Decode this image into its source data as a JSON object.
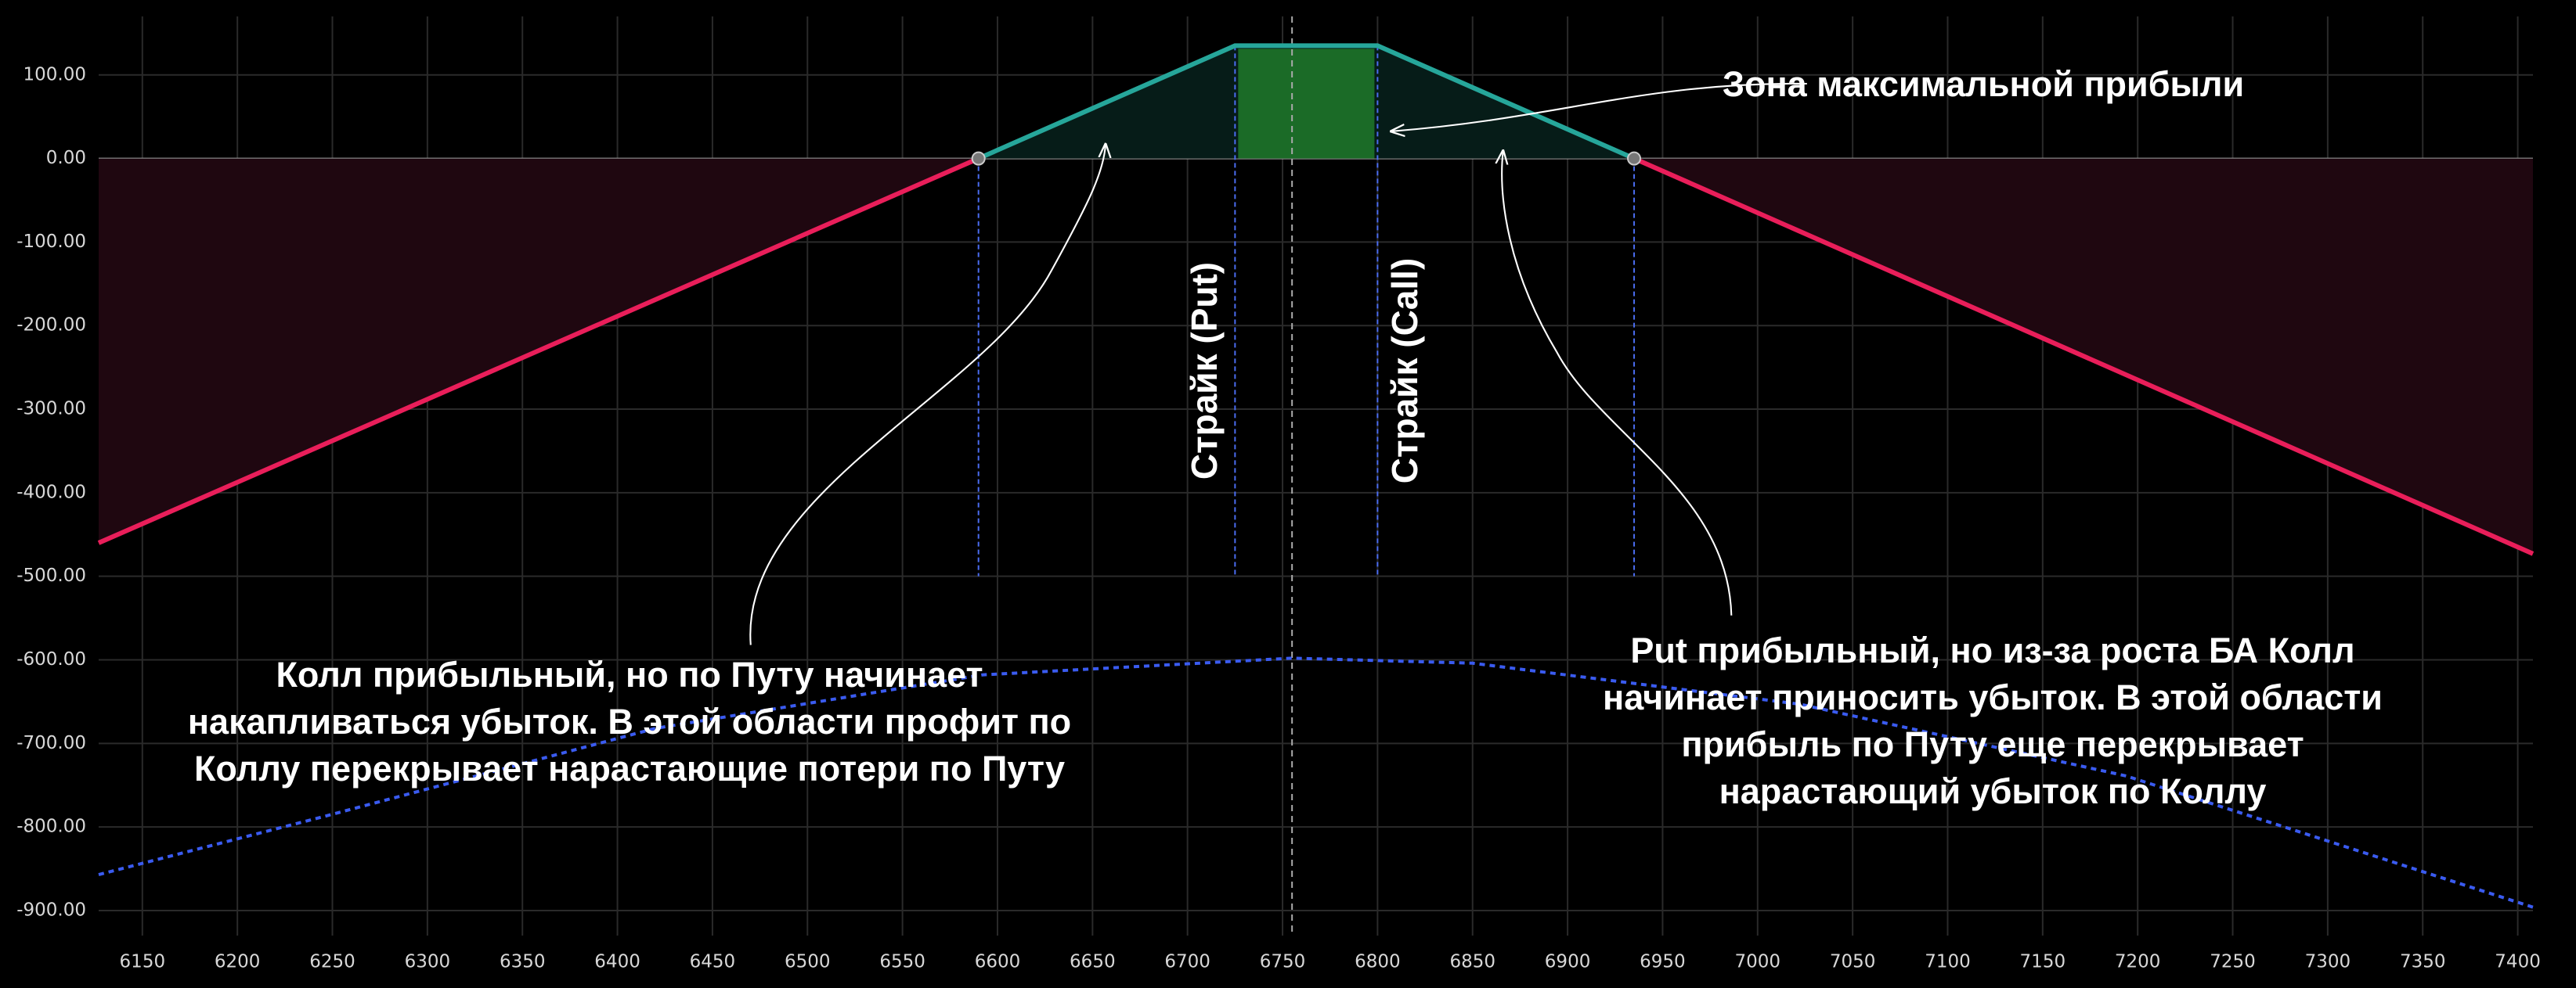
{
  "chart_data": {
    "type": "line",
    "xlim": [
      6127,
      7408
    ],
    "ylim": [
      -930,
      170
    ],
    "xticks": [
      6150,
      6200,
      6250,
      6300,
      6350,
      6400,
      6450,
      6500,
      6550,
      6600,
      6650,
      6700,
      6750,
      6800,
      6850,
      6900,
      6950,
      7000,
      7050,
      7100,
      7150,
      7200,
      7250,
      7300,
      7350,
      7400
    ],
    "yticks": [
      {
        "value": 100,
        "label": "100.00"
      },
      {
        "value": 0,
        "label": "0.00"
      },
      {
        "value": -100,
        "label": "-100.00"
      },
      {
        "value": -200,
        "label": "-200.00"
      },
      {
        "value": -300,
        "label": "-300.00"
      },
      {
        "value": -400,
        "label": "-400.00"
      },
      {
        "value": -500,
        "label": "-500.00"
      },
      {
        "value": -600,
        "label": "-600.00"
      },
      {
        "value": -700,
        "label": "-700.00"
      },
      {
        "value": -800,
        "label": "-800.00"
      },
      {
        "value": -900,
        "label": "-900.00"
      }
    ],
    "grid": true,
    "series": [
      {
        "x": [
          6127,
          6590,
          6725,
          6800,
          6935,
          7408
        ],
        "values": [
          -460,
          0,
          135,
          135,
          0,
          -473
        ],
        "color": "#e91e5a",
        "profit_color": "#26a69a",
        "loss_fill": "#1f0710",
        "profit_fill": "#061c18",
        "max_zone_fill": "#1b6b27"
      },
      {
        "x": [
          6127,
          6248,
          6420,
          6592,
          6755,
          6850,
          7022,
          7194,
          7408
        ],
        "values": [
          -857,
          -786,
          -682,
          -618,
          -598,
          -604,
          -653,
          -739,
          -896
        ],
        "color": "#3a5bf0",
        "dashed": true
      }
    ],
    "guide_bottom": -500,
    "spot_x": 6755,
    "annotations": {
      "max_zone": "Зона максимальной прибыли",
      "put_strike": "Страйк (Put)",
      "call_strike": "Страйк (Call)",
      "left_note": [
        "Колл прибыльный, но по Путу начинает",
        "накапливаться убыток. В этой области профит по",
        "Коллу перекрывает нарастающие потери по Путу"
      ],
      "right_note": [
        "Put прибыльный, но из-за роста БА Колл",
        "начинает приносить убыток. В этой области",
        "прибыль по Путу еще перекрывает",
        "нарастающий убыток по Коллу"
      ]
    }
  }
}
